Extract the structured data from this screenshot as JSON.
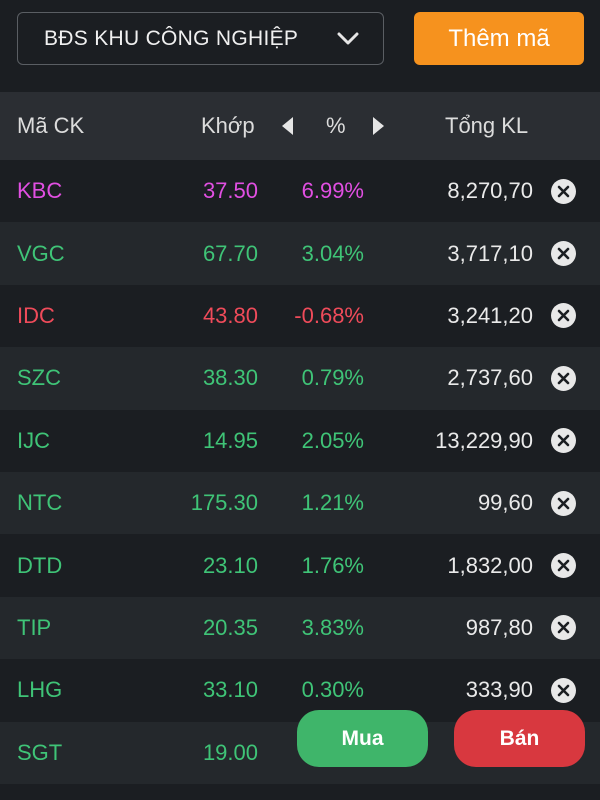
{
  "toolbar": {
    "group_label": "BĐS KHU CÔNG NGHIỆP",
    "add_label": "Thêm mã"
  },
  "table": {
    "headers": {
      "code": "Mã CK",
      "match": "Khớp",
      "percent": "%",
      "volume": "Tổng KL"
    },
    "rows": [
      {
        "code": "KBC",
        "price": "37.50",
        "pct": "6.99%",
        "volume": "8,270,70",
        "color": "#e14fe2"
      },
      {
        "code": "VGC",
        "price": "67.70",
        "pct": "3.04%",
        "volume": "3,717,10",
        "color": "#3fc477"
      },
      {
        "code": "IDC",
        "price": "43.80",
        "pct": "-0.68%",
        "volume": "3,241,20",
        "color": "#ef4b5a"
      },
      {
        "code": "SZC",
        "price": "38.30",
        "pct": "0.79%",
        "volume": "2,737,60",
        "color": "#3fc477"
      },
      {
        "code": "IJC",
        "price": "14.95",
        "pct": "2.05%",
        "volume": "13,229,90",
        "color": "#3fc477"
      },
      {
        "code": "NTC",
        "price": "175.30",
        "pct": "1.21%",
        "volume": "99,60",
        "color": "#3fc477"
      },
      {
        "code": "DTD",
        "price": "23.10",
        "pct": "1.76%",
        "volume": "1,832,00",
        "color": "#3fc477"
      },
      {
        "code": "TIP",
        "price": "20.35",
        "pct": "3.83%",
        "volume": "987,80",
        "color": "#3fc477"
      },
      {
        "code": "LHG",
        "price": "33.10",
        "pct": "0.30%",
        "volume": "333,90",
        "color": "#3fc477"
      },
      {
        "code": "SGT",
        "price": "19.00",
        "pct": "",
        "volume": "",
        "color": "#3fc477"
      }
    ]
  },
  "actions": {
    "buy_label": "Mua",
    "sell_label": "Bán"
  },
  "colors": {
    "accent": "#f6921e",
    "buy": "#3fb56a",
    "sell": "#d8383f"
  },
  "icons": {
    "dropdown": "chevron-down-icon",
    "prev": "caret-left-icon",
    "next": "caret-right-icon",
    "remove": "close-circle-icon"
  }
}
